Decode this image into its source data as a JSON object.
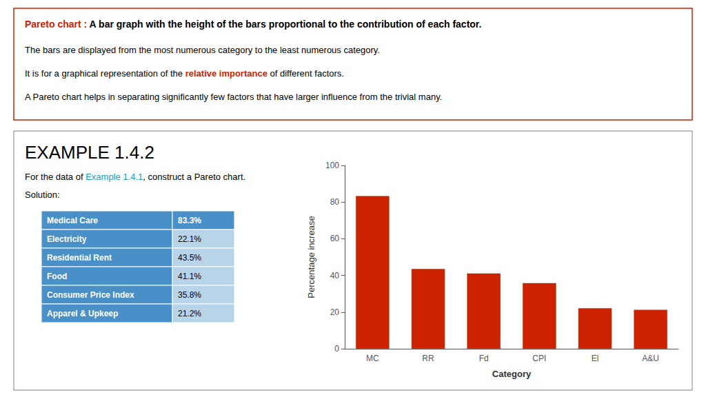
{
  "chart_data": {
    "type": "bar",
    "categories": [
      "MC",
      "RR",
      "Fd",
      "CPI",
      "El",
      "A&U"
    ],
    "values": [
      83.3,
      43.5,
      41.1,
      35.8,
      22.1,
      21.2
    ],
    "color": "#cc2200",
    "xlabel": "Category",
    "ylabel": "Percentage increase",
    "ylim": [
      0,
      100
    ],
    "yticks": [
      0,
      20,
      40,
      60,
      80,
      100
    ],
    "grid": false,
    "annotations": [
      [
        "Pareto chart :",
        " A bar graph with the height of the bars proportional to the contribution of each factor."
      ],
      [
        "The bars are displayed from the most numerous category to the least numerous category."
      ],
      [
        "It is for a graphical representation of the ",
        "relative importance",
        " of different factors."
      ],
      [
        "A Pareto chart helps in separating significantly few factors that have larger influence from the trivial many."
      ],
      [
        "EXAMPLE 1.4.2"
      ],
      [
        "For the data of ",
        "Example 1.4.1",
        ", construct a Pareto chart."
      ],
      [
        "Solution:"
      ]
    ],
    "table": {
      "headers": [
        "Medical Care",
        "Electricity",
        "Residential Rent",
        "Food",
        "Consumer Price Index",
        "Apparel & Upkeep"
      ],
      "values": [
        "83.3%",
        "22.1%",
        "43.5%",
        "41.1%",
        "35.8%",
        "21.2%"
      ]
    }
  }
}
